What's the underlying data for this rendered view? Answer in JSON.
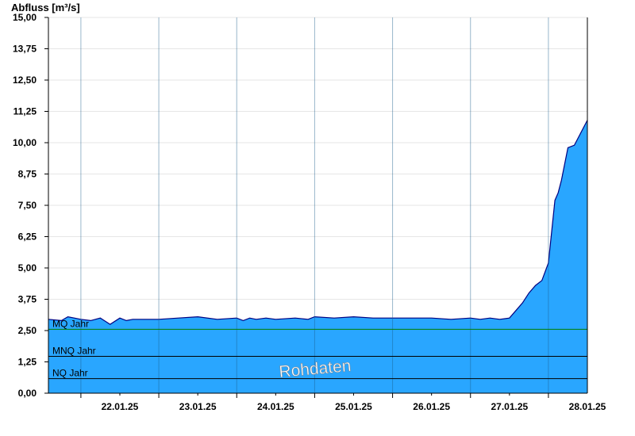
{
  "chart_data": {
    "type": "area",
    "title": "",
    "ylabel": "Abfluss [m³/s]",
    "xlabel": "",
    "ylim": [
      0,
      15
    ],
    "xlim": [
      "21.01.25 14:00",
      "28.01.25 12:00"
    ],
    "yticks": [
      "0,00",
      "1,25",
      "2,50",
      "3,75",
      "5,00",
      "6,25",
      "7,50",
      "8,75",
      "10,00",
      "11,25",
      "12,50",
      "13,75",
      "15,00"
    ],
    "xtick_labels": [
      "22.01.25",
      "23.01.25",
      "24.01.25",
      "25.01.25",
      "26.01.25",
      "27.01.25",
      "28.01.25"
    ],
    "grid": true,
    "fill_color": "#29a6ff",
    "line_color": "#000080",
    "reference_lines": [
      {
        "label": "MQ Jahr",
        "value": 2.55,
        "color": "#008000"
      },
      {
        "label": "MNQ Jahr",
        "value": 1.47,
        "color": "#000000"
      },
      {
        "label": "NQ Jahr",
        "value": 0.58,
        "color": "#000000"
      }
    ],
    "watermark": "Rohdaten",
    "series": [
      {
        "x": [
          "21.01.25 14:00",
          "21.01.25 18:00",
          "21.01.25 20:00",
          "21.01.25 22:00",
          "22.01.25 00:00",
          "22.01.25 03:00",
          "22.01.25 06:00",
          "22.01.25 09:00",
          "22.01.25 12:00",
          "22.01.25 14:00",
          "22.01.25 16:00",
          "22.01.25 18:00",
          "22.01.25 20:00",
          "22.01.25 22:00",
          "23.01.25 00:00",
          "23.01.25 06:00",
          "23.01.25 12:00",
          "23.01.25 18:00",
          "24.01.25 00:00",
          "24.01.25 02:00",
          "24.01.25 04:00",
          "24.01.25 06:00",
          "24.01.25 09:00",
          "24.01.25 12:00",
          "24.01.25 18:00",
          "24.01.25 22:00",
          "25.01.25 00:00",
          "25.01.25 06:00",
          "25.01.25 12:00",
          "25.01.25 18:00",
          "26.01.25 00:00",
          "26.01.25 06:00",
          "26.01.25 12:00",
          "26.01.25 18:00",
          "27.01.25 00:00",
          "27.01.25 03:00",
          "27.01.25 06:00",
          "27.01.25 09:00",
          "27.01.25 12:00",
          "27.01.25 14:00",
          "27.01.25 16:00",
          "27.01.25 18:00",
          "27.01.25 20:00",
          "27.01.25 22:00",
          "28.01.25 00:00",
          "28.01.25 02:00",
          "28.01.25 03:00",
          "28.01.25 04:00",
          "28.01.25 06:00",
          "28.01.25 08:00",
          "28.01.25 10:00",
          "28.01.25 12:00"
        ],
        "values": [
          2.95,
          2.9,
          3.05,
          3.0,
          2.95,
          2.9,
          3.0,
          2.75,
          3.0,
          2.9,
          2.95,
          2.95,
          2.95,
          2.95,
          2.95,
          3.0,
          3.05,
          2.95,
          3.0,
          2.9,
          3.0,
          2.95,
          3.0,
          2.95,
          3.0,
          2.95,
          3.05,
          3.0,
          3.05,
          3.0,
          3.0,
          3.0,
          3.0,
          2.95,
          3.0,
          2.95,
          3.0,
          2.95,
          3.0,
          3.3,
          3.6,
          4.0,
          4.3,
          4.5,
          5.2,
          7.7,
          8.0,
          8.5,
          9.8,
          9.9,
          10.4,
          10.9
        ]
      }
    ]
  }
}
